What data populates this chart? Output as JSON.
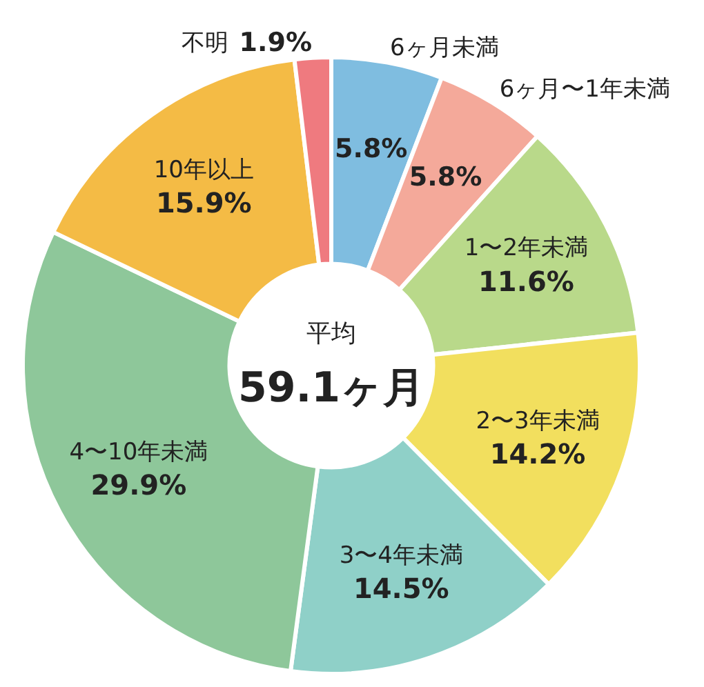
{
  "chart_data": {
    "type": "donut",
    "categories": [
      "6ヶ月未満",
      "6ヶ月〜1年未満",
      "1〜2年未満",
      "2〜3年未満",
      "3〜4年未満",
      "4〜10年未満",
      "10年以上",
      "不明"
    ],
    "values": [
      5.8,
      5.8,
      11.6,
      14.2,
      14.5,
      29.9,
      15.9,
      1.9
    ],
    "colors": [
      "#7fbde0",
      "#f4a99a",
      "#b9d98a",
      "#f2df5e",
      "#8fd0c8",
      "#8ec79a",
      "#f4bb45",
      "#ef7a7f"
    ],
    "value_labels": [
      "5.8%",
      "5.8%",
      "11.6%",
      "14.2%",
      "14.5%",
      "29.9%",
      "15.9%",
      "1.9%"
    ],
    "annotations": [
      "平均",
      "59.1ヶ月"
    ]
  }
}
